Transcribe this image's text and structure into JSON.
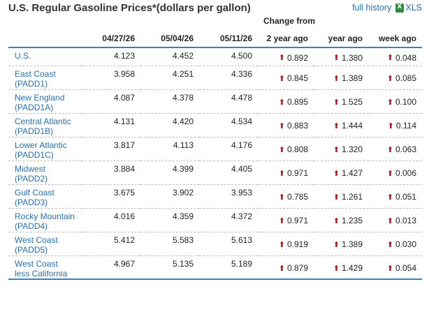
{
  "title": "U.S. Regular Gasoline Prices*(dollars per gallon)",
  "links": {
    "full_history": "full history",
    "xls": "XLS"
  },
  "change_from_label": "Change from",
  "columns": [
    "",
    "04/27/26",
    "05/04/26",
    "05/11/26",
    "2 year ago",
    "year ago",
    "week ago"
  ],
  "up_arrow_color": "#9b1d20",
  "rows": [
    {
      "region": [
        "U.S."
      ],
      "p1": "4.123",
      "p2": "4.452",
      "p3": "4.500",
      "c2y": "0.892",
      "c1y": "1.380",
      "cwk": "0.048"
    },
    {
      "region": [
        "East Coast",
        "(PADD1)"
      ],
      "p1": "3.958",
      "p2": "4.251",
      "p3": "4.336",
      "c2y": "0.845",
      "c1y": "1.389",
      "cwk": "0.085"
    },
    {
      "region": [
        "New England",
        "(PADD1A)"
      ],
      "p1": "4.087",
      "p2": "4.378",
      "p3": "4.478",
      "c2y": "0.895",
      "c1y": "1.525",
      "cwk": "0.100"
    },
    {
      "region": [
        "Central Atlantic",
        "(PADD1B)"
      ],
      "p1": "4.131",
      "p2": "4.420",
      "p3": "4.534",
      "c2y": "0.883",
      "c1y": "1.444",
      "cwk": "0.114"
    },
    {
      "region": [
        "Lower Atlantic",
        "(PADD1C)"
      ],
      "p1": "3.817",
      "p2": "4.113",
      "p3": "4.176",
      "c2y": "0.808",
      "c1y": "1.320",
      "cwk": "0.063"
    },
    {
      "region": [
        "Midwest",
        "(PADD2)"
      ],
      "p1": "3.884",
      "p2": "4.399",
      "p3": "4.405",
      "c2y": "0.971",
      "c1y": "1.427",
      "cwk": "0.006"
    },
    {
      "region": [
        "Gulf Coast",
        "(PADD3)"
      ],
      "p1": "3.675",
      "p2": "3.902",
      "p3": "3.953",
      "c2y": "0.785",
      "c1y": "1.261",
      "cwk": "0.051"
    },
    {
      "region": [
        "Rocky Mountain",
        "(PADD4)"
      ],
      "p1": "4.016",
      "p2": "4.359",
      "p3": "4.372",
      "c2y": "0.971",
      "c1y": "1.235",
      "cwk": "0.013"
    },
    {
      "region": [
        "West Coast",
        "(PADD5)"
      ],
      "p1": "5.412",
      "p2": "5.583",
      "p3": "5.613",
      "c2y": "0.919",
      "c1y": "1.389",
      "cwk": "0.030"
    },
    {
      "region": [
        "West Coast",
        "less California"
      ],
      "p1": "4.967",
      "p2": "5.135",
      "p3": "5.189",
      "c2y": "0.879",
      "c1y": "1.429",
      "cwk": "0.054"
    }
  ]
}
